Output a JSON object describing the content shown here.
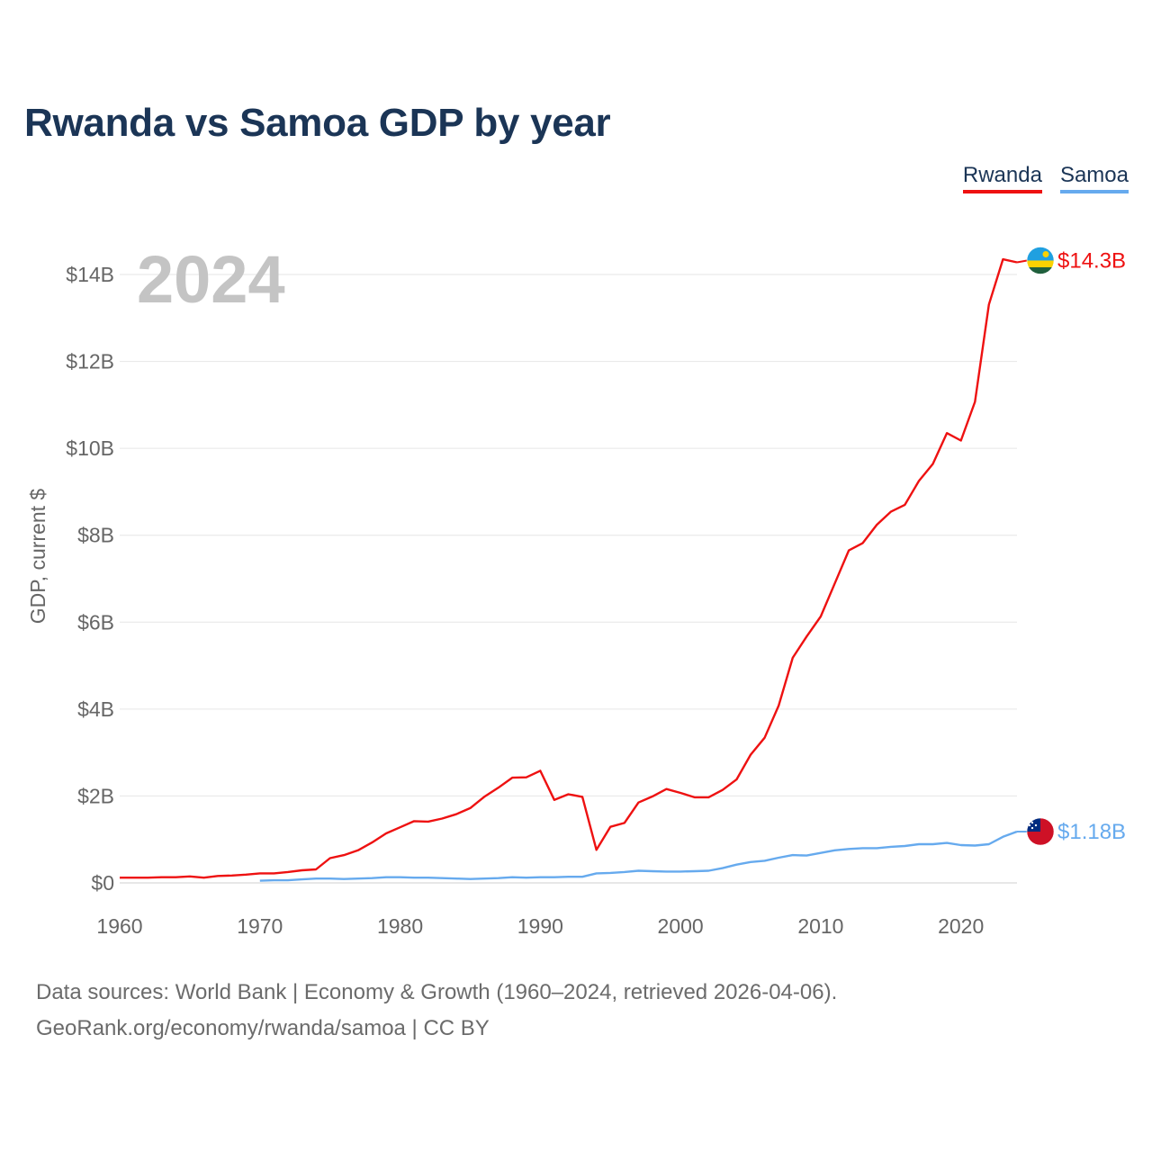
{
  "title": "Rwanda vs Samoa GDP by year",
  "year_label": "2024",
  "legend": [
    {
      "name": "Rwanda",
      "color": "#ee1111"
    },
    {
      "name": "Samoa",
      "color": "#66aaee"
    }
  ],
  "footer": {
    "line1": "Data sources: World Bank | Economy & Growth (1960–2024, retrieved 2026-04-06).",
    "line2": "GeoRank.org/economy/rwanda/samoa | CC BY"
  },
  "chart_data": {
    "type": "line",
    "title": "Rwanda vs Samoa GDP by year",
    "xlabel": "",
    "ylabel": "GDP, current $",
    "xlim": [
      1960,
      2024
    ],
    "ylim": [
      0,
      14
    ],
    "y_unit": "billions USD",
    "x_ticks": [
      1960,
      1970,
      1980,
      1990,
      2000,
      2010,
      2020
    ],
    "y_ticks": [
      0,
      2,
      4,
      6,
      8,
      10,
      12,
      14
    ],
    "y_tick_labels": [
      "$0",
      "$2B",
      "$4B",
      "$6B",
      "$8B",
      "$10B",
      "$12B",
      "$14B"
    ],
    "grid": true,
    "series": [
      {
        "name": "Rwanda",
        "color": "#ee1111",
        "end_label": "$14.3B",
        "flag": "rwanda-flag",
        "x": [
          1960,
          1961,
          1962,
          1963,
          1964,
          1965,
          1966,
          1967,
          1968,
          1969,
          1970,
          1971,
          1972,
          1973,
          1974,
          1975,
          1976,
          1977,
          1978,
          1979,
          1980,
          1981,
          1982,
          1983,
          1984,
          1985,
          1986,
          1987,
          1988,
          1989,
          1990,
          1991,
          1992,
          1993,
          1994,
          1995,
          1996,
          1997,
          1998,
          1999,
          2000,
          2001,
          2002,
          2003,
          2004,
          2005,
          2006,
          2007,
          2008,
          2009,
          2010,
          2011,
          2012,
          2013,
          2014,
          2015,
          2016,
          2017,
          2018,
          2019,
          2020,
          2021,
          2022,
          2023,
          2024
        ],
        "values": [
          0.12,
          0.12,
          0.12,
          0.13,
          0.13,
          0.15,
          0.12,
          0.16,
          0.17,
          0.19,
          0.22,
          0.22,
          0.25,
          0.29,
          0.31,
          0.57,
          0.64,
          0.75,
          0.93,
          1.14,
          1.28,
          1.42,
          1.41,
          1.48,
          1.58,
          1.72,
          1.98,
          2.19,
          2.42,
          2.43,
          2.58,
          1.91,
          2.04,
          1.98,
          0.76,
          1.29,
          1.38,
          1.85,
          1.99,
          2.16,
          2.07,
          1.97,
          1.97,
          2.14,
          2.38,
          2.95,
          3.34,
          4.08,
          5.18,
          5.67,
          6.13,
          6.89,
          7.65,
          7.82,
          8.24,
          8.54,
          8.7,
          9.25,
          9.64,
          10.35,
          10.18,
          11.07,
          13.31,
          14.35,
          14.28
        ]
      },
      {
        "name": "Samoa",
        "color": "#66aaee",
        "end_label": "$1.18B",
        "flag": "samoa-flag",
        "x": [
          1970,
          1971,
          1972,
          1973,
          1974,
          1975,
          1976,
          1977,
          1978,
          1979,
          1980,
          1981,
          1982,
          1983,
          1984,
          1985,
          1986,
          1987,
          1988,
          1989,
          1990,
          1991,
          1992,
          1993,
          1994,
          1995,
          1996,
          1997,
          1998,
          1999,
          2000,
          2001,
          2002,
          2003,
          2004,
          2005,
          2006,
          2007,
          2008,
          2009,
          2010,
          2011,
          2012,
          2013,
          2014,
          2015,
          2016,
          2017,
          2018,
          2019,
          2020,
          2021,
          2022,
          2023,
          2024
        ],
        "values": [
          0.05,
          0.06,
          0.06,
          0.08,
          0.1,
          0.1,
          0.09,
          0.1,
          0.11,
          0.13,
          0.13,
          0.12,
          0.12,
          0.11,
          0.1,
          0.09,
          0.1,
          0.11,
          0.13,
          0.12,
          0.13,
          0.13,
          0.14,
          0.14,
          0.22,
          0.23,
          0.25,
          0.28,
          0.27,
          0.26,
          0.26,
          0.27,
          0.28,
          0.34,
          0.42,
          0.48,
          0.51,
          0.58,
          0.64,
          0.63,
          0.69,
          0.75,
          0.78,
          0.8,
          0.8,
          0.83,
          0.85,
          0.89,
          0.89,
          0.92,
          0.87,
          0.86,
          0.89,
          1.06,
          1.18
        ]
      }
    ]
  }
}
